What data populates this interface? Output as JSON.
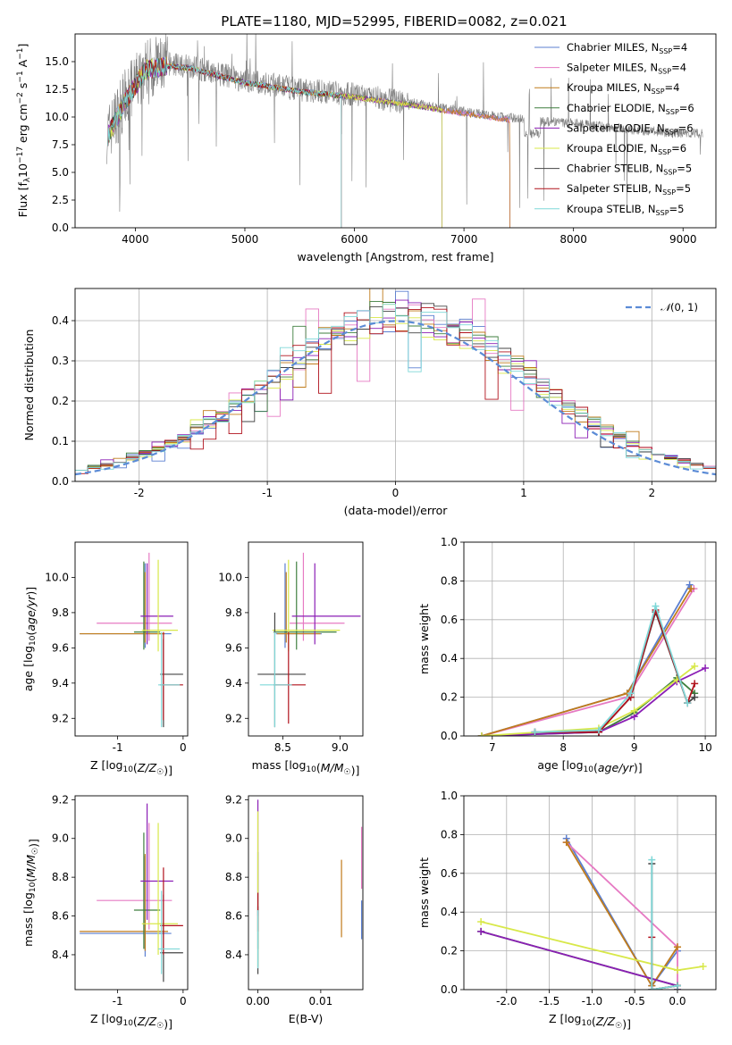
{
  "figure_title": "PLATE=1180, MJD=52995, FIBERID=0082, z=0.021",
  "colors": {
    "Chabrier MILES": "#5b7fd1",
    "Salpeter MILES": "#e67ac3",
    "Kroupa MILES": "#c07b1b",
    "Chabrier ELODIE": "#3f7f3f",
    "Salpeter ELODIE": "#8b1fb5",
    "Kroupa ELODIE": "#d8e84a",
    "Chabrier STELIB": "#444444",
    "Salpeter STELIB": "#b0121c",
    "Kroupa STELIB": "#7fd8d8",
    "data": "#808080",
    "normal": "#5b8bd6"
  },
  "chart_data": [
    {
      "id": "spectrum",
      "type": "line",
      "title": "PLATE=1180, MJD=52995, FIBERID=0082, z=0.021",
      "xlabel": "wavelength [Angstrom, rest frame]",
      "ylabel": "Flux [f_λ 10^-17 erg cm^-2 s^-1 A^-1]",
      "xlim": [
        3450,
        9300
      ],
      "ylim": [
        0,
        17.5
      ],
      "xticks": [
        4000,
        5000,
        6000,
        7000,
        8000,
        9000
      ],
      "yticks": [
        0.0,
        2.5,
        5.0,
        7.5,
        10.0,
        12.5,
        15.0
      ],
      "legend": [
        "Chabrier MILES, N_SSP=4",
        "Salpeter MILES, N_SSP=4",
        "Kroupa MILES, N_SSP=4",
        "Chabrier ELODIE, N_SSP=6",
        "Salpeter ELODIE, N_SSP=6",
        "Kroupa ELODIE, N_SSP=6",
        "Chabrier STELIB, N_SSP=5",
        "Salpeter STELIB, N_SSP=5",
        "Kroupa STELIB, N_SSP=5"
      ],
      "legend_position": "top-right",
      "continuum": {
        "x": [
          3750,
          3900,
          4000,
          4100,
          4300,
          4500,
          5000,
          5500,
          6000,
          6500,
          7000,
          7500,
          8000,
          8500,
          9000
        ],
        "y": [
          8.5,
          11.5,
          13.0,
          14.5,
          14.8,
          14.6,
          13.3,
          12.5,
          12.0,
          11.3,
          10.5,
          9.8,
          9.4,
          8.9,
          8.5
        ]
      },
      "model_end_x": {
        "MILES": 7420,
        "ELODIE": 6800,
        "STELIB": 5880
      }
    },
    {
      "id": "residuals",
      "type": "bar",
      "xlabel": "(data-model)/error",
      "ylabel": "Normed distribution",
      "xlim": [
        -2.5,
        2.5
      ],
      "ylim": [
        0,
        0.48
      ],
      "xticks": [
        -2,
        -1,
        0,
        1,
        2
      ],
      "yticks": [
        0.0,
        0.1,
        0.2,
        0.3,
        0.4
      ],
      "grid": true,
      "legend": "N(0,1)",
      "legend_position": "top-right",
      "bin_width": 0.1,
      "bin_start": -2.5,
      "template": [
        0.04,
        0.043,
        0.045,
        0.048,
        0.05,
        0.055,
        0.065,
        0.072,
        0.085,
        0.1,
        0.11,
        0.125,
        0.135,
        0.15,
        0.16,
        0.17,
        0.18,
        0.19,
        0.2,
        0.22,
        0.24,
        0.27,
        0.29,
        0.31,
        0.33,
        0.35,
        0.37,
        0.39,
        0.39,
        0.395,
        0.395,
        0.4,
        0.39,
        0.38,
        0.37,
        0.37,
        0.36,
        0.355,
        0.35,
        0.34,
        0.33,
        0.31,
        0.3,
        0.28,
        0.26,
        0.24,
        0.22,
        0.2,
        0.185,
        0.17,
        0.16,
        0.15,
        0.14,
        0.12,
        0.11,
        0.1,
        0.085,
        0.072,
        0.065,
        0.055,
        0.05,
        0.045,
        0.042,
        0.04,
        0.037,
        0.035,
        0.033,
        0.03,
        0.028,
        0.027
      ]
    },
    {
      "id": "age_vs_Z",
      "type": "scatter",
      "xlabel": "Z [log10(Z/Z☉)]",
      "ylabel": "age  [log10(age/yr)]",
      "xlim": [
        -1.65,
        0.07
      ],
      "ylim": [
        9.1,
        10.2
      ],
      "xticks": [
        -1,
        0
      ],
      "yticks": [
        9.2,
        9.4,
        9.6,
        9.8,
        10.0
      ],
      "points": [
        {
          "model": "Chabrier MILES",
          "x": -0.58,
          "y": 9.68,
          "xerr": [
            1.0,
            0.4
          ],
          "yerr": [
            0.08,
            0.4
          ]
        },
        {
          "model": "Salpeter MILES",
          "x": -0.52,
          "y": 9.74,
          "xerr": [
            0.8,
            0.35
          ],
          "yerr": [
            0.1,
            0.4
          ]
        },
        {
          "model": "Kroupa MILES",
          "x": -0.58,
          "y": 9.68,
          "xerr": [
            1.0,
            0.3
          ],
          "yerr": [
            0.05,
            0.35
          ]
        },
        {
          "model": "Chabrier ELODIE",
          "x": -0.6,
          "y": 9.69,
          "xerr": [
            0.15,
            0.25
          ],
          "yerr": [
            0.1,
            0.4
          ]
        },
        {
          "model": "Salpeter ELODIE",
          "x": -0.55,
          "y": 9.78,
          "xerr": [
            0.1,
            0.4
          ],
          "yerr": [
            0.16,
            0.3
          ]
        },
        {
          "model": "Kroupa ELODIE",
          "x": -0.38,
          "y": 9.7,
          "xerr": [
            0.25,
            0.3
          ],
          "yerr": [
            0.12,
            0.4
          ]
        },
        {
          "model": "Chabrier STELIB",
          "x": -0.3,
          "y": 9.45,
          "xerr": [
            0.05,
            0.3
          ],
          "yerr": [
            0.3,
            0.2
          ]
        },
        {
          "model": "Salpeter STELIB",
          "x": -0.3,
          "y": 9.39,
          "xerr": [
            0.05,
            0.3
          ],
          "yerr": [
            0.2,
            0.3
          ]
        },
        {
          "model": "Kroupa STELIB",
          "x": -0.33,
          "y": 9.39,
          "xerr": [
            0.05,
            0.28
          ],
          "yerr": [
            0.24,
            0.3
          ]
        }
      ]
    },
    {
      "id": "age_vs_mass",
      "type": "scatter",
      "xlabel": "mass [log10(M/M☉)]",
      "ylabel": "",
      "xlim": [
        8.2,
        9.2
      ],
      "ylim": [
        9.1,
        10.2
      ],
      "xticks": [
        8.5,
        9.0
      ],
      "yticks": [
        9.2,
        9.4,
        9.6,
        9.8,
        10.0
      ],
      "points": [
        {
          "model": "Chabrier MILES",
          "x": 8.52,
          "y": 9.68,
          "xerr": [
            0.08,
            0.32
          ],
          "yerr": [
            0.08,
            0.4
          ]
        },
        {
          "model": "Salpeter MILES",
          "x": 8.68,
          "y": 9.74,
          "xerr": [
            0.12,
            0.36
          ],
          "yerr": [
            0.1,
            0.4
          ]
        },
        {
          "model": "Kroupa MILES",
          "x": 8.53,
          "y": 9.68,
          "xerr": [
            0.08,
            0.3
          ],
          "yerr": [
            0.05,
            0.35
          ]
        },
        {
          "model": "Chabrier ELODIE",
          "x": 8.62,
          "y": 9.69,
          "xerr": [
            0.2,
            0.35
          ],
          "yerr": [
            0.1,
            0.4
          ]
        },
        {
          "model": "Salpeter ELODIE",
          "x": 8.78,
          "y": 9.78,
          "xerr": [
            0.2,
            0.4
          ],
          "yerr": [
            0.16,
            0.3
          ]
        },
        {
          "model": "Kroupa ELODIE",
          "x": 8.55,
          "y": 9.7,
          "xerr": [
            0.14,
            0.45
          ],
          "yerr": [
            0.12,
            0.4
          ]
        },
        {
          "model": "Chabrier STELIB",
          "x": 8.43,
          "y": 9.45,
          "xerr": [
            0.15,
            0.27
          ],
          "yerr": [
            0.3,
            0.35
          ]
        },
        {
          "model": "Salpeter STELIB",
          "x": 8.55,
          "y": 9.39,
          "xerr": [
            0.13,
            0.15
          ],
          "yerr": [
            0.22,
            0.3
          ]
        },
        {
          "model": "Kroupa STELIB",
          "x": 8.43,
          "y": 9.39,
          "xerr": [
            0.13,
            0.15
          ],
          "yerr": [
            0.24,
            0.3
          ]
        }
      ]
    },
    {
      "id": "weight_vs_age",
      "type": "line",
      "xlabel": "age  [log10(age/yr)]",
      "ylabel": "mass weight",
      "xlim": [
        6.6,
        10.15
      ],
      "ylim": [
        0,
        1.0
      ],
      "xticks": [
        7,
        8,
        9,
        10
      ],
      "yticks": [
        0.0,
        0.2,
        0.4,
        0.6,
        0.8,
        1.0
      ],
      "grid": true,
      "series": [
        {
          "model": "Chabrier MILES",
          "x": [
            6.85,
            8.9,
            9.78
          ],
          "y": [
            0.0,
            0.22,
            0.78
          ]
        },
        {
          "model": "Salpeter MILES",
          "x": [
            6.85,
            8.9,
            9.84
          ],
          "y": [
            0.0,
            0.2,
            0.76
          ]
        },
        {
          "model": "Kroupa MILES",
          "x": [
            6.85,
            8.9,
            9.8
          ],
          "y": [
            0.0,
            0.22,
            0.76
          ]
        },
        {
          "model": "Chabrier ELODIE",
          "x": [
            6.85,
            8.5,
            9.0,
            9.6,
            9.85
          ],
          "y": [
            0.0,
            0.02,
            0.12,
            0.3,
            0.22
          ]
        },
        {
          "model": "Salpeter ELODIE",
          "x": [
            6.85,
            8.5,
            9.0,
            9.6,
            10.0
          ],
          "y": [
            0.0,
            0.02,
            0.1,
            0.28,
            0.35
          ]
        },
        {
          "model": "Kroupa ELODIE",
          "x": [
            6.85,
            8.5,
            9.0,
            9.6,
            9.85
          ],
          "y": [
            0.0,
            0.04,
            0.13,
            0.29,
            0.36
          ]
        },
        {
          "model": "Chabrier STELIB",
          "x": [
            7.6,
            8.5,
            8.95,
            9.3,
            9.75,
            9.85
          ],
          "y": [
            0.02,
            0.02,
            0.2,
            0.64,
            0.17,
            0.2
          ]
        },
        {
          "model": "Salpeter STELIB",
          "x": [
            7.6,
            8.5,
            8.95,
            9.3,
            9.75,
            9.85
          ],
          "y": [
            0.02,
            0.02,
            0.2,
            0.65,
            0.17,
            0.27
          ]
        },
        {
          "model": "Kroupa STELIB",
          "x": [
            7.6,
            8.5,
            8.95,
            9.3,
            9.75
          ],
          "y": [
            0.02,
            0.03,
            0.22,
            0.67,
            0.17
          ]
        }
      ]
    },
    {
      "id": "mass_vs_Z",
      "type": "scatter",
      "xlabel": "Z [log10(Z/Z☉)]",
      "ylabel": "mass [log10(M/M☉)]",
      "xlim": [
        -1.65,
        0.07
      ],
      "ylim": [
        8.22,
        9.22
      ],
      "xticks": [
        -1,
        0
      ],
      "yticks": [
        8.4,
        8.6,
        8.8,
        9.0,
        9.2
      ],
      "points": [
        {
          "model": "Chabrier MILES",
          "x": -0.58,
          "y": 8.51,
          "xerr": [
            1.0,
            0.4
          ],
          "yerr": [
            0.12,
            0.4
          ]
        },
        {
          "model": "Salpeter MILES",
          "x": -0.52,
          "y": 8.68,
          "xerr": [
            0.8,
            0.35
          ],
          "yerr": [
            0.15,
            0.4
          ]
        },
        {
          "model": "Kroupa MILES",
          "x": -0.58,
          "y": 8.52,
          "xerr": [
            1.0,
            0.35
          ],
          "yerr": [
            0.1,
            0.4
          ]
        },
        {
          "model": "Chabrier ELODIE",
          "x": -0.6,
          "y": 8.63,
          "xerr": [
            0.15,
            0.25
          ],
          "yerr": [
            0.2,
            0.4
          ]
        },
        {
          "model": "Salpeter ELODIE",
          "x": -0.55,
          "y": 8.78,
          "xerr": [
            0.1,
            0.4
          ],
          "yerr": [
            0.2,
            0.4
          ]
        },
        {
          "model": "Kroupa ELODIE",
          "x": -0.38,
          "y": 8.56,
          "xerr": [
            0.25,
            0.3
          ],
          "yerr": [
            0.16,
            0.52
          ]
        },
        {
          "model": "Chabrier STELIB",
          "x": -0.3,
          "y": 8.41,
          "xerr": [
            0.05,
            0.3
          ],
          "yerr": [
            0.15,
            0.3
          ]
        },
        {
          "model": "Salpeter STELIB",
          "x": -0.3,
          "y": 8.55,
          "xerr": [
            0.05,
            0.3
          ],
          "yerr": [
            0.15,
            0.3
          ]
        },
        {
          "model": "Kroupa STELIB",
          "x": -0.33,
          "y": 8.43,
          "xerr": [
            0.05,
            0.28
          ],
          "yerr": [
            0.13,
            0.3
          ]
        }
      ]
    },
    {
      "id": "mass_vs_ebv",
      "type": "scatter",
      "xlabel": "E(B-V)",
      "ylabel": "",
      "xlim": [
        -0.0015,
        0.0167
      ],
      "ylim": [
        8.22,
        9.22
      ],
      "xticks": [
        0.0,
        0.01
      ],
      "yticks": [
        8.4,
        8.6,
        8.8,
        9.0,
        9.2
      ],
      "points": [
        {
          "model": "Chabrier MILES",
          "x": 0.0165,
          "y": 8.58,
          "yerr": [
            0.1,
            0.1
          ]
        },
        {
          "model": "Salpeter MILES",
          "x": 0.0165,
          "y": 8.86,
          "yerr": [
            0.12,
            0.2
          ]
        },
        {
          "model": "Kroupa MILES",
          "x": 0.0133,
          "y": 8.69,
          "yerr": [
            0.2,
            0.2
          ]
        },
        {
          "model": "Chabrier ELODIE",
          "x": 0.0,
          "y": 8.63,
          "yerr": [
            0.2,
            0.3
          ]
        },
        {
          "model": "Salpeter ELODIE",
          "x": 0.0,
          "y": 8.9,
          "yerr": [
            0.3,
            0.3
          ]
        },
        {
          "model": "Kroupa ELODIE",
          "x": 0.0,
          "y": 8.74,
          "yerr": [
            0.4,
            0.4
          ]
        },
        {
          "model": "Chabrier STELIB",
          "x": 0.0,
          "y": 8.45,
          "yerr": [
            0.15,
            0.2
          ]
        },
        {
          "model": "Salpeter STELIB",
          "x": 0.0,
          "y": 8.62,
          "yerr": [
            0.1,
            0.1
          ]
        },
        {
          "model": "Kroupa STELIB",
          "x": 0.0,
          "y": 8.43,
          "yerr": [
            0.1,
            0.2
          ]
        }
      ]
    },
    {
      "id": "weight_vs_Z",
      "type": "line",
      "xlabel": "Z [log10(Z/Z☉)]",
      "ylabel": "mass weight",
      "xlim": [
        -2.5,
        0.45
      ],
      "ylim": [
        0,
        1.0
      ],
      "xticks": [
        -2.0,
        -1.5,
        -1.0,
        -0.5,
        0.0
      ],
      "yticks": [
        0.0,
        0.2,
        0.4,
        0.6,
        0.8,
        1.0
      ],
      "grid": true,
      "series": [
        {
          "model": "Chabrier MILES",
          "x": [
            -1.3,
            -0.3,
            0.0
          ],
          "y": [
            0.78,
            0.02,
            0.2
          ]
        },
        {
          "model": "Salpeter MILES",
          "x": [
            -1.3,
            0.0,
            0.0
          ],
          "y": [
            0.76,
            0.22,
            0.02
          ]
        },
        {
          "model": "Kroupa MILES",
          "x": [
            -1.3,
            -0.3,
            0.0
          ],
          "y": [
            0.76,
            0.02,
            0.22
          ]
        },
        {
          "model": "Chabrier ELODIE",
          "x": [
            -2.3,
            0.0,
            0.0
          ],
          "y": [
            0.3,
            0.02,
            0.0
          ]
        },
        {
          "model": "Salpeter ELODIE",
          "x": [
            -2.3,
            0.0,
            0.0
          ],
          "y": [
            0.3,
            0.02,
            0.0
          ]
        },
        {
          "model": "Kroupa ELODIE",
          "x": [
            -2.3,
            0.0,
            0.3
          ],
          "y": [
            0.35,
            0.1,
            0.12
          ]
        },
        {
          "model": "Chabrier STELIB",
          "x": [
            -0.3,
            -0.3,
            0.0
          ],
          "y": [
            0.65,
            0.0,
            0.02
          ]
        },
        {
          "model": "Salpeter STELIB",
          "x": [
            -0.3,
            -0.3,
            0.0
          ],
          "y": [
            0.27,
            0.0,
            0.02
          ]
        },
        {
          "model": "Kroupa STELIB",
          "x": [
            -0.3,
            -0.3,
            0.0
          ],
          "y": [
            0.67,
            0.0,
            0.02
          ]
        }
      ]
    }
  ]
}
